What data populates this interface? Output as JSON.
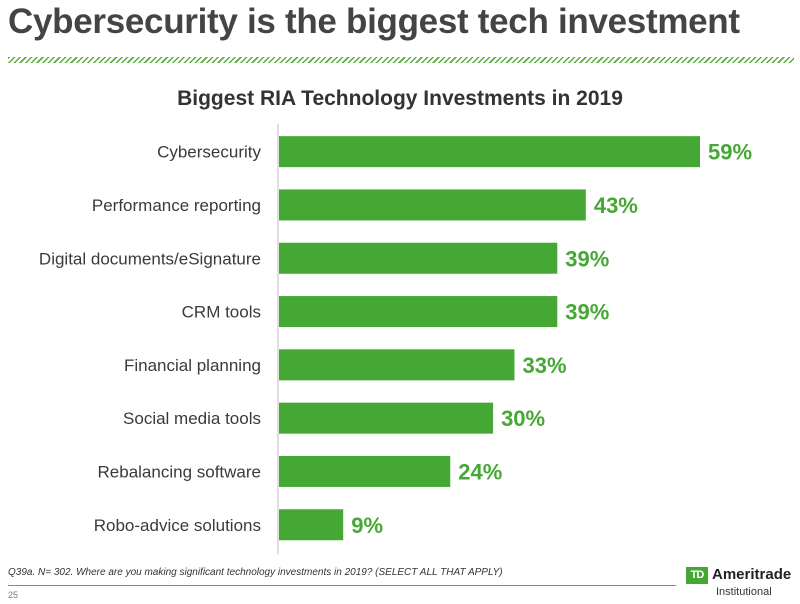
{
  "slide": {
    "title": "Cybersecurity is the biggest tech investment",
    "footnote": "Q39a. N= 302. Where are you making significant technology investments in 2019? (SELECT ALL THAT APPLY)",
    "page_number": "25"
  },
  "logo": {
    "mark": "TD",
    "name": "Ameritrade",
    "subtitle": "Institutional"
  },
  "colors": {
    "bar": "#45a834",
    "value_label": "#45a834",
    "axis": "#bfbfbf",
    "category_label": "#3a3a3a"
  },
  "chart_data": {
    "type": "bar",
    "orientation": "horizontal",
    "title": "Biggest RIA Technology Investments in 2019",
    "xlabel": "",
    "ylabel": "",
    "categories": [
      "Cybersecurity",
      "Performance reporting",
      "Digital documents/eSignature",
      "CRM tools",
      "Financial planning",
      "Social media tools",
      "Rebalancing software",
      "Robo-advice solutions"
    ],
    "values": [
      59,
      43,
      39,
      39,
      33,
      30,
      24,
      9
    ],
    "value_labels": [
      "59%",
      "43%",
      "39%",
      "39%",
      "33%",
      "30%",
      "24%",
      "9%"
    ],
    "unit": "%",
    "xlim": [
      0,
      59
    ],
    "grid": false,
    "legend": "none"
  }
}
